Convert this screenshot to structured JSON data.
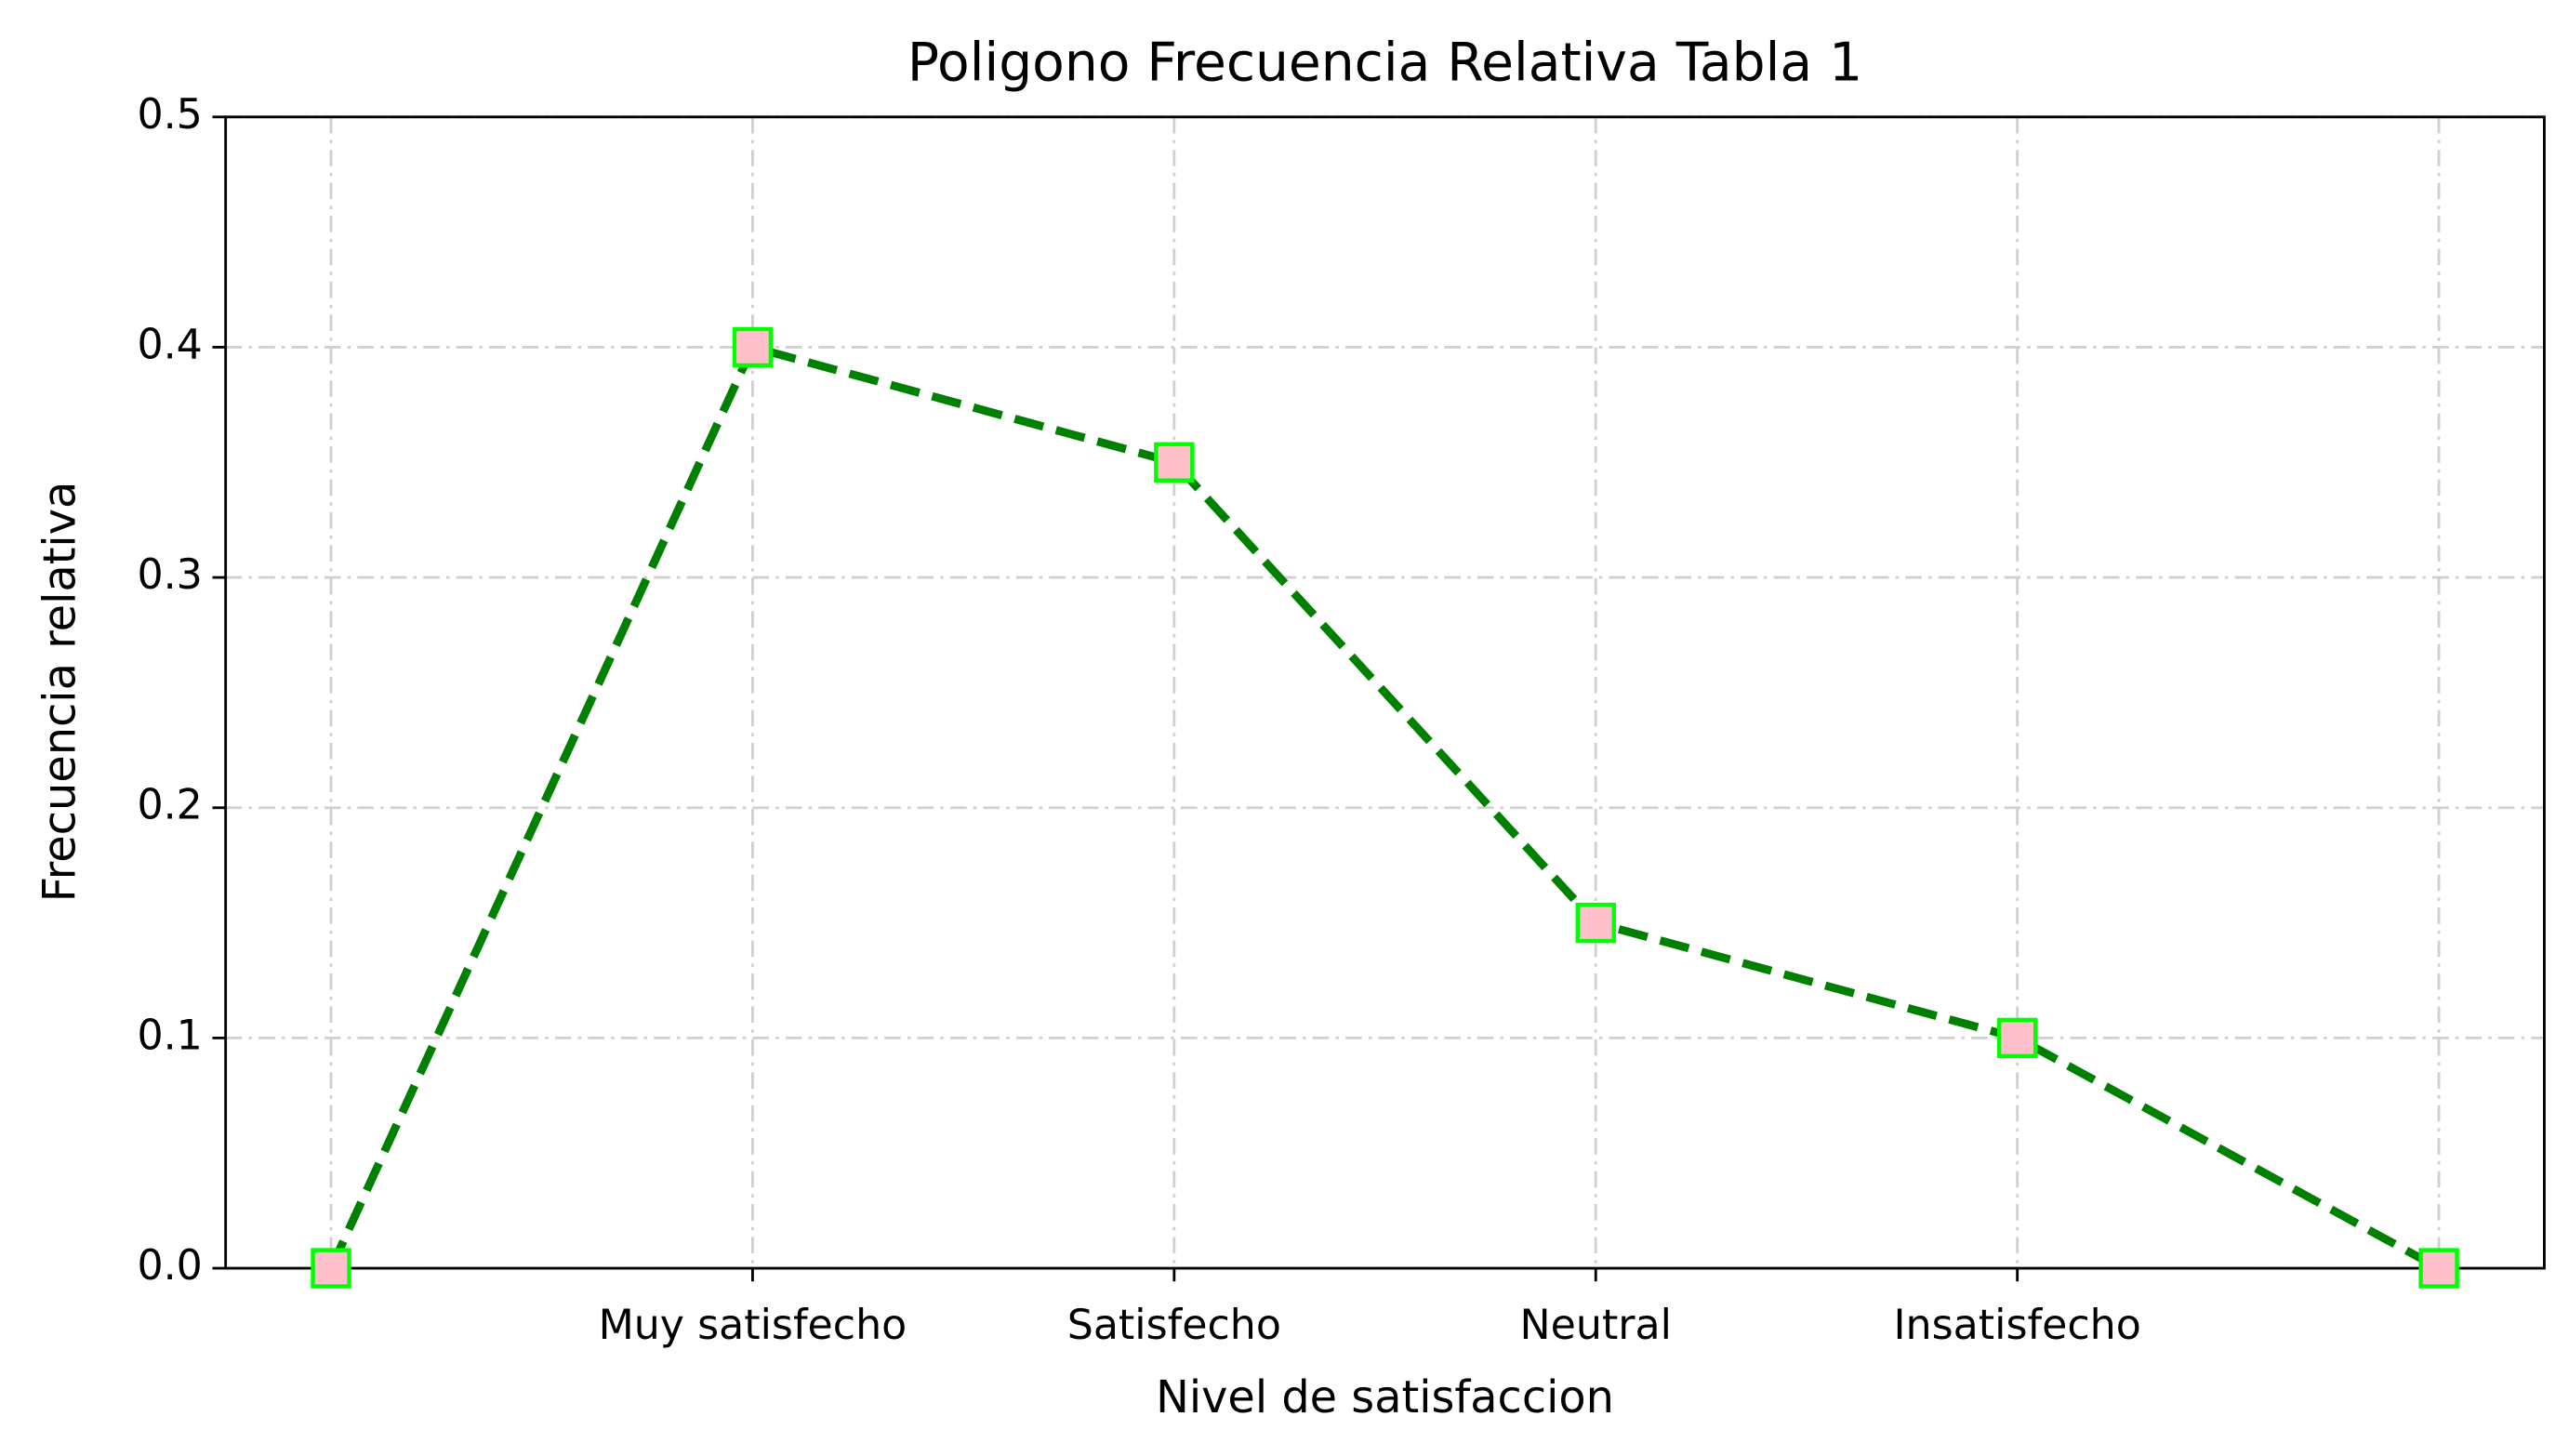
{
  "chart_data": {
    "type": "line",
    "title": "Poligono Frecuencia Relativa Tabla 1",
    "x_label": "Nivel de satisfaccion",
    "y_label": "Frecuencia relativa",
    "categories": [
      null,
      "Muy satisfecho",
      "Satisfecho",
      "Neutral",
      "Insatisfecho",
      null
    ],
    "values": [
      0,
      0.4,
      0.35,
      0.15,
      0.1,
      0
    ],
    "color": "#008000",
    "marker_face_color": "#ffc0cb",
    "marker_edge_color": "#00ff00",
    "ylim": [
      0,
      0.5
    ],
    "yticks": [
      {
        "value": 0,
        "label": "0.0"
      },
      0.1,
      0.2,
      0.3,
      0.4,
      0.5
    ],
    "grid": true
  }
}
